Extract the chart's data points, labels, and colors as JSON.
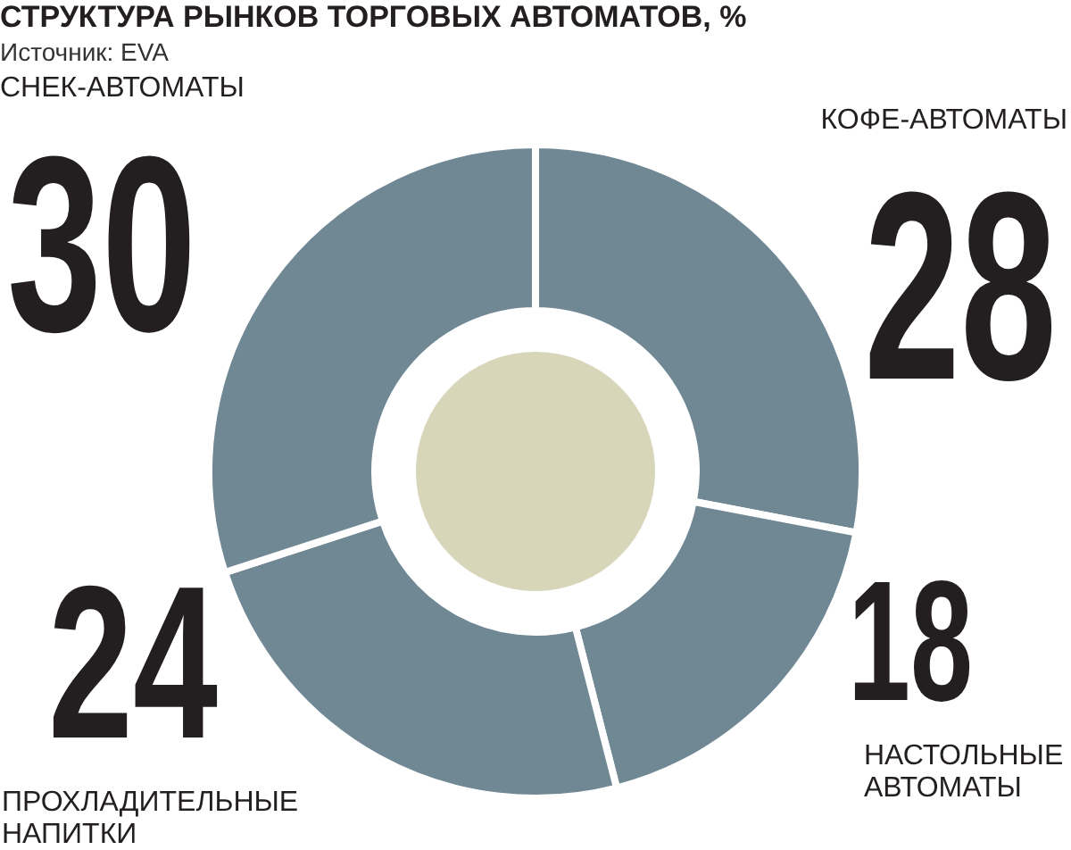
{
  "chart_data": {
    "type": "donut",
    "title": "СТРУКТУРА РЫНКОВ ТОРГОВЫХ АВТОМАТОВ, %",
    "subtitle": "Источник: EVA",
    "categories": [
      "КОФЕ-АВТОМАТЫ",
      "НАСТОЛЬНЫЕ АВТОМАТЫ",
      "ПРОХЛАДИТЕЛЬНЫЕ НАПИТКИ",
      "СНЕК-АВТОМАТЫ"
    ],
    "values": [
      28,
      18,
      24,
      30
    ],
    "colors": [
      "#708894",
      "#708894",
      "#708894",
      "#708894"
    ],
    "data_labels": true
  }
}
